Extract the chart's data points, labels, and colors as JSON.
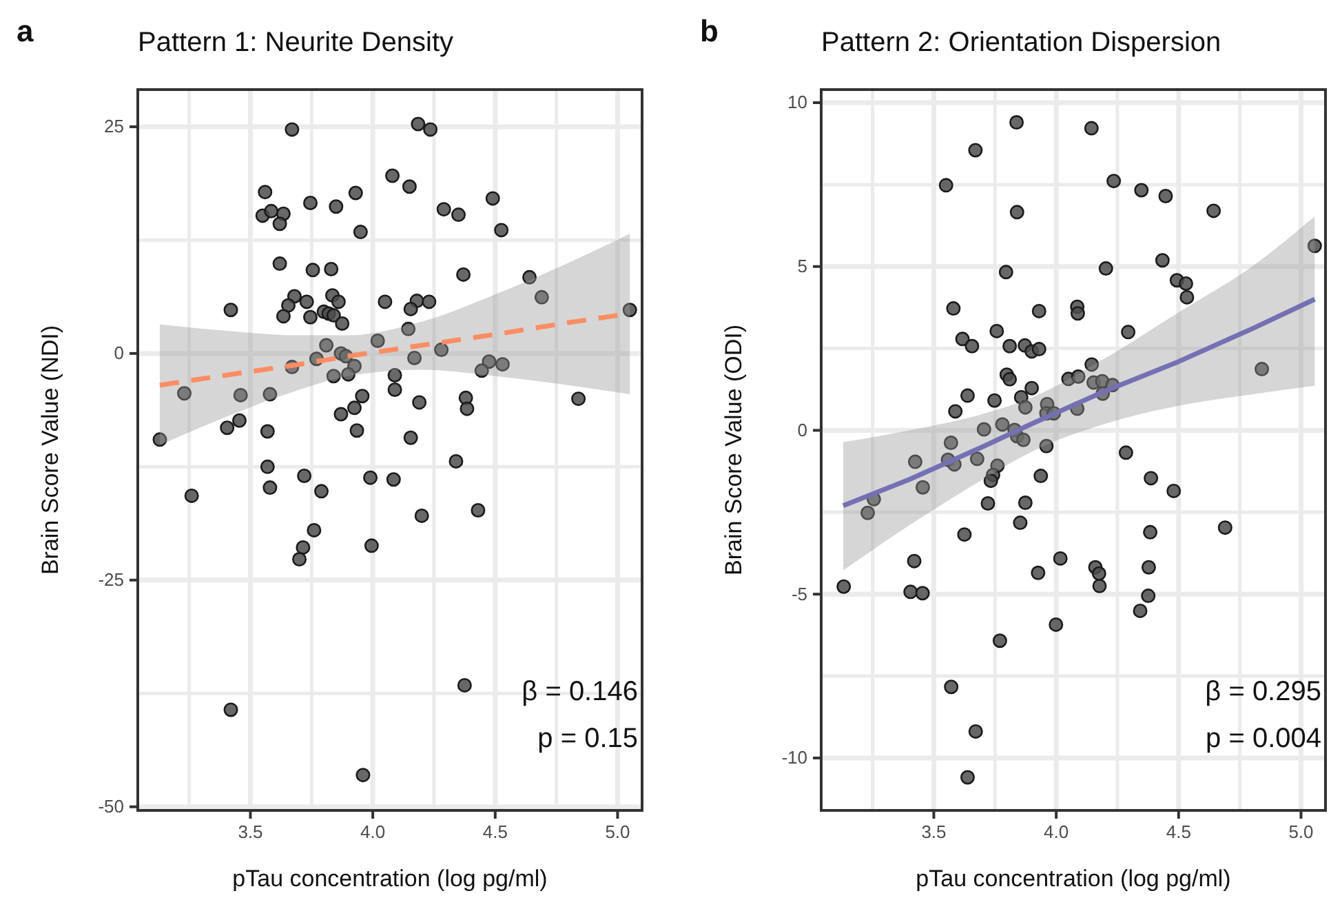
{
  "chart_data": [
    {
      "type": "scatter",
      "title": "Pattern 1: Neurite Density",
      "xlabel": "pTau concentration (log pg/ml)",
      "ylabel": "Brain Score Value (NDI)",
      "annotations": [
        "a",
        "β = 0.146",
        "p = 0.15"
      ],
      "xlim": [
        3.04,
        5.1
      ],
      "ylim": [
        -50.4,
        29.1
      ],
      "xticks": [
        {
          "value": 3.5,
          "label": "3.5"
        },
        {
          "value": 4,
          "label": "4.0"
        },
        {
          "value": 4.5,
          "label": "4.5"
        },
        {
          "value": 5,
          "label": "5.0"
        }
      ],
      "yticks": [
        -50,
        -25,
        0,
        25
      ],
      "grid": true,
      "series": [
        {
          "color": "#4d4d4d",
          "marker": "circle",
          "x": [
            3.67,
            3.56,
            3.745,
            3.85,
            3.93,
            3.55,
            3.585,
            3.635,
            3.62,
            3.95,
            4.08,
            3.62,
            3.755,
            3.83,
            3.42,
            3.68,
            3.655,
            3.635,
            3.73,
            3.745,
            3.835,
            3.86,
            3.8,
            3.82,
            3.84,
            3.875,
            4.05,
            4.02,
            3.81,
            3.77,
            3.87,
            3.89,
            3.67,
            3.925,
            3.84,
            3.9,
            3.23,
            3.46,
            3.58,
            3.957,
            3.925,
            3.87,
            3.455,
            3.405,
            3.57,
            3.935,
            3.13,
            3.57,
            3.72,
            3.99,
            3.79,
            3.58,
            3.26,
            4.085,
            4.185,
            4.235,
            4.15,
            4.29,
            4.35,
            4.49,
            4.525,
            4.37,
            4.64,
            4.69,
            5.05,
            4.18,
            4.155,
            4.23,
            4.145,
            4.28,
            4.17,
            4.09,
            4.475,
            4.445,
            4.53,
            4.09,
            4.19,
            4.38,
            4.385,
            4.84,
            4.155,
            4.34,
            4.2,
            4.43,
            3.76,
            3.715,
            3.7,
            3.995,
            4.375,
            3.42,
            3.96
          ],
          "values": [
            24.7,
            17.8,
            16.6,
            16.2,
            17.7,
            15.2,
            15.7,
            15.4,
            14.3,
            13.4,
            19.6,
            9.9,
            9.2,
            9.3,
            4.8,
            6.3,
            5.3,
            4.1,
            5.7,
            4.0,
            6.4,
            5.7,
            4.6,
            4.4,
            4.2,
            3.3,
            5.7,
            1.4,
            0.9,
            -0.6,
            0,
            -0.3,
            -1.5,
            -1.4,
            -2.5,
            -2.3,
            -4.4,
            -4.6,
            -4.5,
            -4.7,
            -6.0,
            -6.7,
            -7.4,
            -8.2,
            -8.6,
            -8.5,
            -9.5,
            -12.5,
            -13.5,
            -13.7,
            -15.2,
            -14.8,
            -15.7,
            -13.9,
            25.3,
            24.7,
            18.4,
            15.9,
            15.3,
            17.1,
            13.6,
            8.7,
            8.4,
            6.2,
            4.8,
            5.8,
            4.9,
            5.7,
            2.7,
            0.4,
            -0.5,
            -2.4,
            -0.9,
            -1.9,
            -1.2,
            -4.0,
            -5.4,
            -4.9,
            -6.1,
            -5.0,
            -9.3,
            -11.9,
            -17.9,
            -17.3,
            -19.5,
            -21.4,
            -22.7,
            -21.2,
            -36.6,
            -39.3,
            -46.5
          ]
        },
        {
          "type": "line",
          "color": "#fc8d62",
          "line_style": "dashed",
          "x": [
            3.13,
            3.4,
            3.7,
            3.9,
            4.2,
            4.5,
            4.8,
            5.05
          ],
          "values": [
            -3.5,
            -2.4,
            -1.2,
            -0.3,
            0.9,
            2.1,
            3.4,
            4.4
          ],
          "lower": [
            -10.1,
            -7,
            -4,
            -2.5,
            -1.8,
            -2.5,
            -3.5,
            -4.5
          ],
          "upper": [
            3.2,
            2.5,
            2.0,
            2.0,
            3.5,
            6.5,
            10.0,
            13.2
          ]
        }
      ]
    },
    {
      "type": "scatter",
      "title": "Pattern 2: Orientation Dispersion",
      "xlabel": "pTau concentration (log pg/ml)",
      "ylabel": "Brain Score Value (ODI)",
      "annotations": [
        "b",
        "β = 0.295",
        "p = 0.004"
      ],
      "xlim": [
        3.04,
        5.1
      ],
      "ylim": [
        -11.6,
        10.4
      ],
      "xticks": [
        {
          "value": 3.5,
          "label": "3.5"
        },
        {
          "value": 4,
          "label": "4.0"
        },
        {
          "value": 4.5,
          "label": "4.5"
        },
        {
          "value": 5,
          "label": "5.0"
        }
      ],
      "yticks": [
        -10,
        -5,
        0,
        5,
        10
      ],
      "grid": true,
      "series": [
        {
          "color": "#4d4d4d",
          "marker": "circle",
          "x": [
            3.838,
            3.67,
            3.55,
            3.84,
            3.795,
            3.58,
            3.93,
            3.617,
            3.656,
            3.757,
            3.81,
            3.872,
            3.9,
            3.93,
            3.798,
            3.81,
            4.05,
            3.638,
            3.748,
            3.857,
            3.9,
            3.588,
            3.874,
            3.963,
            3.96,
            3.99,
            3.705,
            3.78,
            3.83,
            3.84,
            3.866,
            3.57,
            3.424,
            3.558,
            3.584,
            3.677,
            3.76,
            3.742,
            3.733,
            3.96,
            3.937,
            3.455,
            4.144,
            4.235,
            4.348,
            4.447,
            4.643,
            5.056,
            4.203,
            4.434,
            4.493,
            4.53,
            4.534,
            4.086,
            4.088,
            4.294,
            4.145,
            4.09,
            4.153,
            4.188,
            4.19,
            4.23,
            4.84,
            4.086,
            4.285,
            4.387,
            4.48,
            3.132,
            3.23,
            3.255,
            3.42,
            3.405,
            3.454,
            3.625,
            3.571,
            3.671,
            3.638,
            3.77,
            3.721,
            3.853,
            3.874,
            3.926,
            4.017,
            3.999,
            4.384,
            4.69,
            4.16,
            4.175,
            4.177,
            4.378,
            4.376,
            4.343
          ],
          "values": [
            9.4,
            8.55,
            7.48,
            6.66,
            4.83,
            3.72,
            3.64,
            2.79,
            2.57,
            3.03,
            2.57,
            2.59,
            2.41,
            2.48,
            1.7,
            1.56,
            1.57,
            1.06,
            0.91,
            1.01,
            1.29,
            0.58,
            0.7,
            0.8,
            0.52,
            0.52,
            0.03,
            0.18,
            0.01,
            -0.18,
            -0.29,
            -0.38,
            -0.96,
            -0.9,
            -1.04,
            -0.87,
            -1.08,
            -1.36,
            -1.54,
            -0.48,
            -1.39,
            -1.74,
            9.22,
            7.61,
            7.33,
            7.15,
            6.7,
            5.63,
            4.94,
            5.19,
            4.58,
            4.48,
            4.06,
            3.77,
            3.57,
            3.0,
            2.01,
            1.64,
            1.46,
            1.5,
            1.12,
            1.38,
            1.87,
            0.66,
            -0.68,
            -1.46,
            -1.85,
            -4.77,
            -2.52,
            -2.1,
            -3.99,
            -4.93,
            -4.97,
            -3.18,
            -7.83,
            -9.19,
            -10.59,
            -6.42,
            -2.23,
            -2.82,
            -2.21,
            -4.35,
            -3.91,
            -5.93,
            -3.11,
            -2.97,
            -4.18,
            -4.37,
            -4.75,
            -4.18,
            -5.05,
            -5.51
          ]
        },
        {
          "type": "line",
          "color": "#7570b3",
          "line_style": "solid",
          "x": [
            3.13,
            3.4,
            3.7,
            3.9,
            4.2,
            4.5,
            4.8,
            5.056
          ],
          "values": [
            -2.3,
            -1.5,
            -0.5,
            0.2,
            1.2,
            2.1,
            3.1,
            4.0
          ],
          "lower": [
            -4.27,
            -2.9,
            -1.5,
            -0.65,
            0.2,
            0.75,
            1.1,
            1.36
          ],
          "upper": [
            -0.36,
            0.0,
            0.5,
            1.0,
            2.2,
            3.6,
            5.0,
            6.53
          ]
        }
      ]
    }
  ]
}
